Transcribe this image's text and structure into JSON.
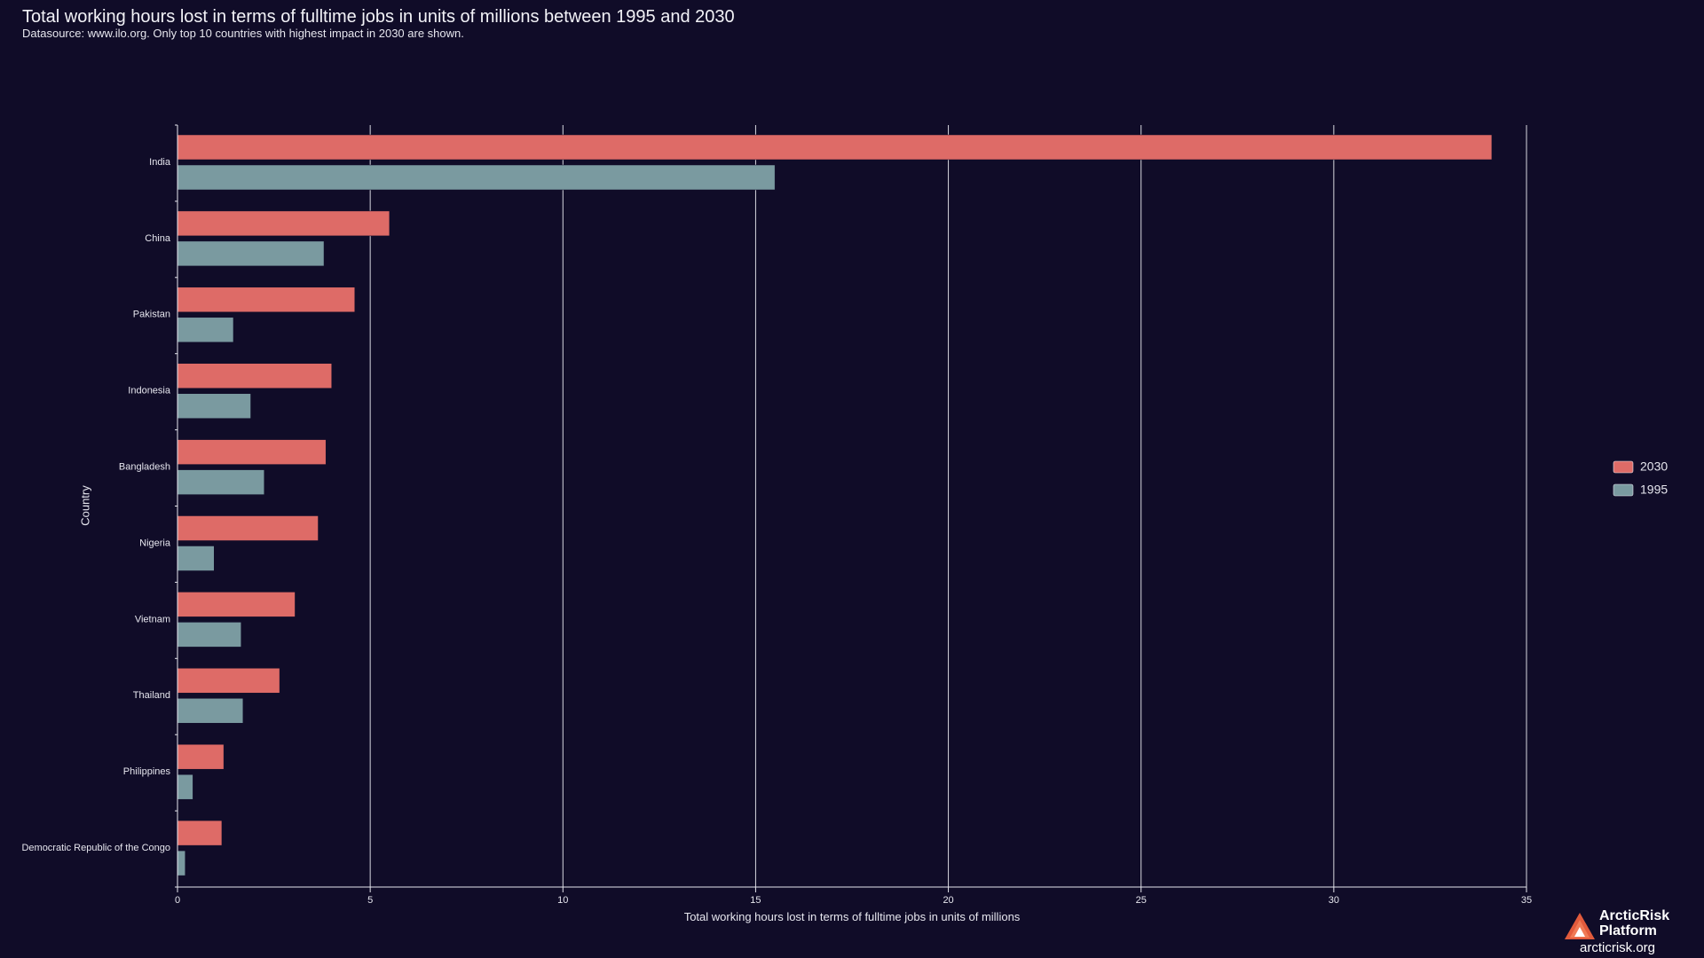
{
  "header": {
    "title": "Total working hours lost in terms of fulltime jobs in units of millions between 1995 and 2030",
    "subtitle": "Datasource: www.ilo.org. Only top 10 countries with highest impact in 2030 are shown."
  },
  "chart_data": {
    "type": "bar",
    "orientation": "horizontal",
    "categories": [
      "India",
      "China",
      "Pakistan",
      "Indonesia",
      "Bangladesh",
      "Nigeria",
      "Vietnam",
      "Thailand",
      "Philippines",
      "Democratic Republic of the Congo"
    ],
    "series": [
      {
        "name": "2030",
        "color": "#de6b67",
        "values": [
          34.1,
          5.5,
          4.6,
          4.0,
          3.85,
          3.65,
          3.05,
          2.65,
          1.2,
          1.15
        ]
      },
      {
        "name": "1995",
        "color": "#7a9aa0",
        "values": [
          15.5,
          3.8,
          1.45,
          1.9,
          2.25,
          0.95,
          1.65,
          1.7,
          0.4,
          0.2
        ]
      }
    ],
    "xlabel": "Total working hours lost in terms of fulltime jobs in units of millions",
    "ylabel": "Country",
    "xlim": [
      0,
      35
    ],
    "xticks": [
      0,
      5,
      10,
      15,
      20,
      25,
      30,
      35
    ],
    "grid": true,
    "legend_position": "right"
  },
  "branding": {
    "name": "ArcticRisk Platform",
    "url": "arcticrisk.org"
  }
}
